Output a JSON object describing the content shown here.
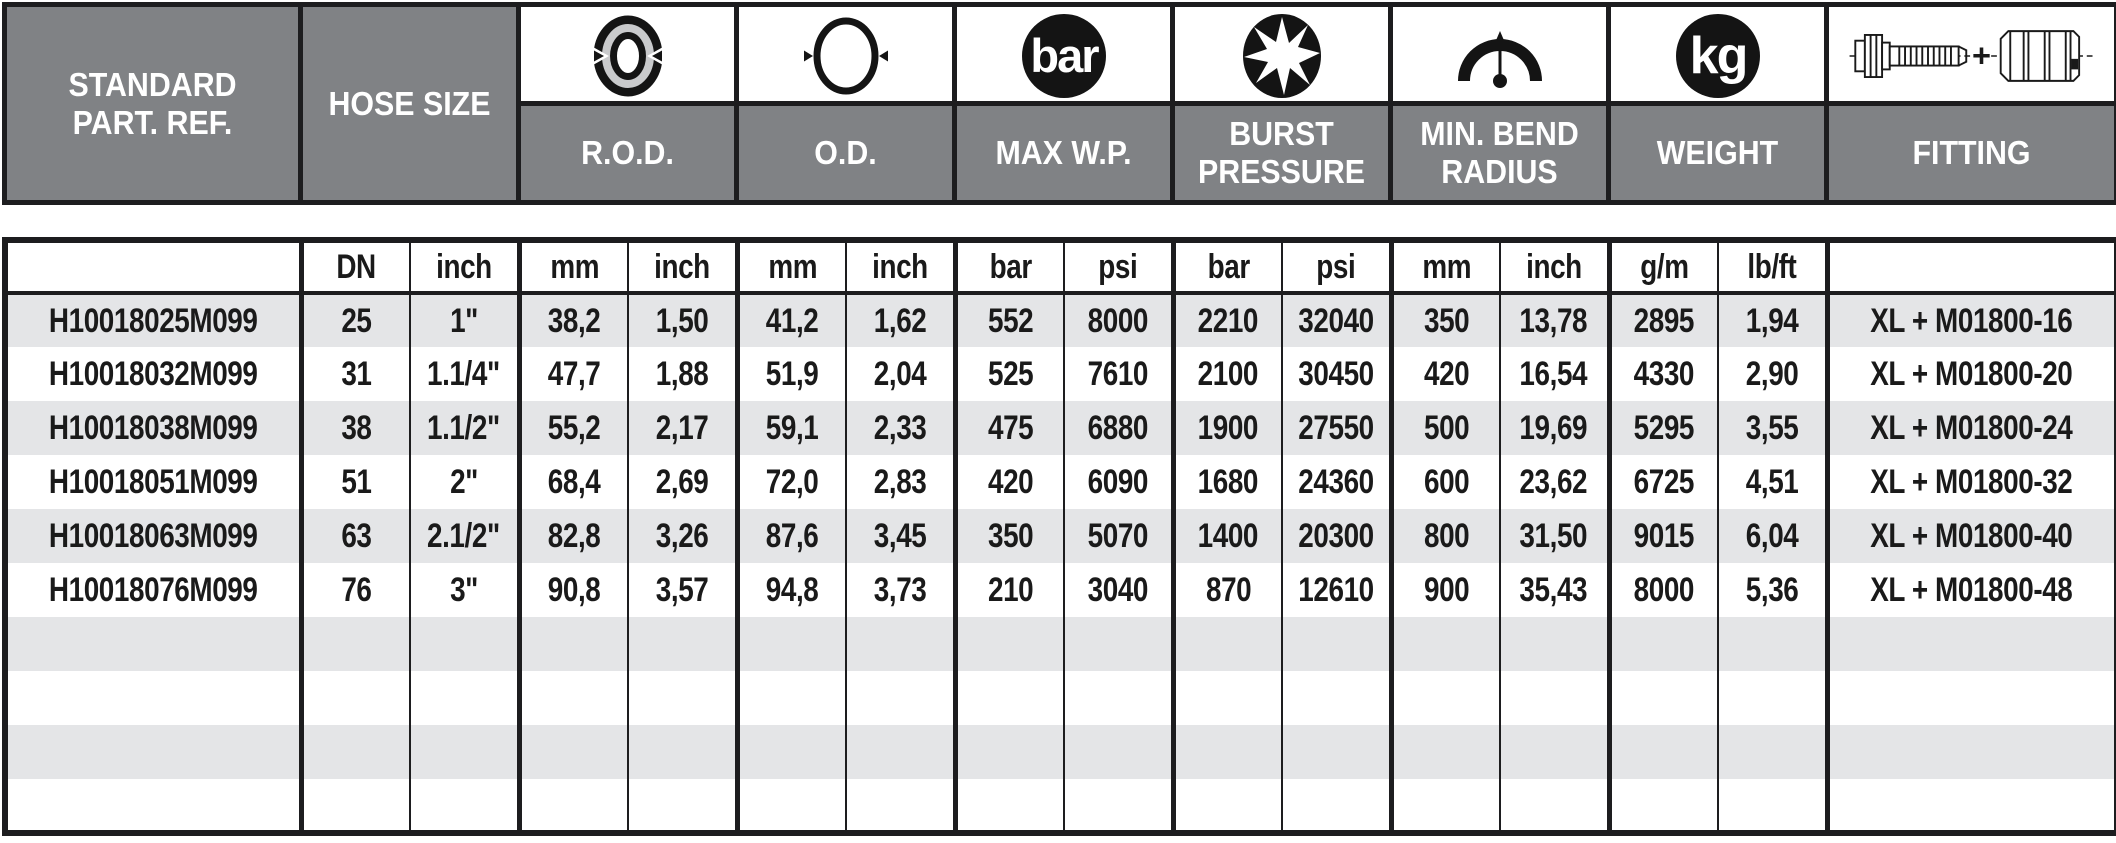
{
  "colors": {
    "header_bg": "#808285",
    "border_black": "#1d1d1f",
    "row_alt": "#e4e5e7",
    "row_white": "#ffffff",
    "text_dark": "#1a1a1a",
    "icon_black": "#141414",
    "rod_ring_gray": "#c9cacc"
  },
  "header": {
    "part_ref": {
      "line1": "STANDARD",
      "line2": "PART. REF."
    },
    "hose_size": "HOSE SIZE",
    "groups": [
      {
        "id": "rod",
        "line1": "R.O.D.",
        "line2": "",
        "icon": "rod-diameter-icon"
      },
      {
        "id": "od",
        "line1": "O.D.",
        "line2": "",
        "icon": "outer-diameter-icon"
      },
      {
        "id": "maxwp",
        "line1": "MAX W.P.",
        "line2": "",
        "icon": "bar-pressure-icon",
        "icon_text": "bar"
      },
      {
        "id": "burst",
        "line1": "BURST",
        "line2": "PRESSURE",
        "icon": "burst-star-icon"
      },
      {
        "id": "bend",
        "line1": "MIN. BEND",
        "line2": "RADIUS",
        "icon": "bend-radius-gauge-icon"
      },
      {
        "id": "weight",
        "line1": "WEIGHT",
        "line2": "",
        "icon": "kg-weight-icon",
        "icon_text": "kg"
      },
      {
        "id": "fitting",
        "line1": "FITTING",
        "line2": "",
        "icon": "fitting-drawing-icon",
        "plus": "+"
      }
    ]
  },
  "table": {
    "unit_headers": [
      "",
      "DN",
      "inch",
      "mm",
      "inch",
      "mm",
      "inch",
      "bar",
      "psi",
      "bar",
      "psi",
      "mm",
      "inch",
      "g/m",
      "lb/ft",
      ""
    ],
    "rows": [
      [
        "H10018025M099",
        "25",
        "1\"",
        "38,2",
        "1,50",
        "41,2",
        "1,62",
        "552",
        "8000",
        "2210",
        "32040",
        "350",
        "13,78",
        "2895",
        "1,94",
        "XL + M01800-16"
      ],
      [
        "H10018032M099",
        "31",
        "1.1/4\"",
        "47,7",
        "1,88",
        "51,9",
        "2,04",
        "525",
        "7610",
        "2100",
        "30450",
        "420",
        "16,54",
        "4330",
        "2,90",
        "XL + M01800-20"
      ],
      [
        "H10018038M099",
        "38",
        "1.1/2\"",
        "55,2",
        "2,17",
        "59,1",
        "2,33",
        "475",
        "6880",
        "1900",
        "27550",
        "500",
        "19,69",
        "5295",
        "3,55",
        "XL + M01800-24"
      ],
      [
        "H10018051M099",
        "51",
        "2\"",
        "68,4",
        "2,69",
        "72,0",
        "2,83",
        "420",
        "6090",
        "1680",
        "24360",
        "600",
        "23,62",
        "6725",
        "4,51",
        "XL + M01800-32"
      ],
      [
        "H10018063M099",
        "63",
        "2.1/2\"",
        "82,8",
        "3,26",
        "87,6",
        "3,45",
        "350",
        "5070",
        "1400",
        "20300",
        "800",
        "31,50",
        "9015",
        "6,04",
        "XL + M01800-40"
      ],
      [
        "H10018076M099",
        "76",
        "3\"",
        "90,8",
        "3,57",
        "94,8",
        "3,73",
        "210",
        "3040",
        "870",
        "12610",
        "900",
        "35,43",
        "8000",
        "5,36",
        "XL + M01800-48"
      ]
    ],
    "empty_row_count": 4
  }
}
